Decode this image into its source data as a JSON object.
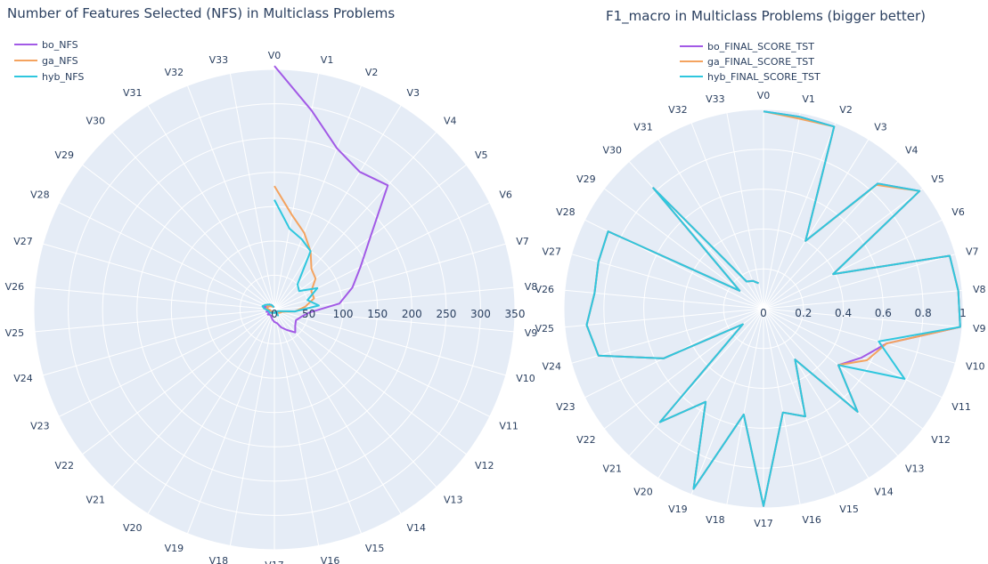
{
  "colors": {
    "background": "#e5ecf6",
    "grid": "#ffffff",
    "text": "#2a3f5f",
    "bo": "#a25ae6",
    "ga": "#f4a35f",
    "hyb": "#2fc7de"
  },
  "chart_data": [
    {
      "type": "radar",
      "title": "Number of Features Selected (NFS) in Multiclass Problems",
      "theta": [
        "V0",
        "V1",
        "V2",
        "V3",
        "V4",
        "V5",
        "V6",
        "V7",
        "V8",
        "V9",
        "V10",
        "V11",
        "V12",
        "V13",
        "V14",
        "V15",
        "V16",
        "V17",
        "V18",
        "V19",
        "V20",
        "V21",
        "V22",
        "V23",
        "V24",
        "V25",
        "V26",
        "V27",
        "V28",
        "V29",
        "V30",
        "V31",
        "V32",
        "V33"
      ],
      "radial_range": [
        0,
        350
      ],
      "radial_ticks": [
        0,
        50,
        100,
        150,
        200,
        250,
        300,
        350
      ],
      "legend_position": "top-left",
      "series": [
        {
          "name": "bo_NFS",
          "color_key": "bo",
          "values": [
            355,
            295,
            252,
            236,
            245,
            175,
            140,
            118,
            95,
            50,
            40,
            35,
            38,
            45,
            35,
            28,
            20,
            18,
            15,
            12,
            10,
            10,
            12,
            8,
            12,
            10,
            12,
            15,
            10,
            8,
            10,
            8,
            5,
            3
          ]
        },
        {
          "name": "ga_NFS",
          "color_key": "ga",
          "values": [
            180,
            140,
            120,
            100,
            80,
            75,
            60,
            60,
            45,
            30,
            12,
            10,
            8,
            5,
            4,
            3,
            3,
            5,
            5,
            4,
            4,
            4,
            5,
            5,
            6,
            6,
            12,
            10,
            12,
            8,
            6,
            5,
            5,
            3
          ]
        },
        {
          "name": "hyb_NFS",
          "color_key": "hyb",
          "values": [
            160,
            120,
            110,
            100,
            50,
            45,
            70,
            50,
            65,
            30,
            8,
            5,
            5,
            5,
            10,
            3,
            4,
            5,
            5,
            5,
            6,
            6,
            8,
            8,
            8,
            10,
            15,
            18,
            15,
            12,
            10,
            8,
            5,
            3
          ]
        }
      ]
    },
    {
      "type": "radar",
      "title": "F1_macro in Multiclass Problems (bigger better)",
      "theta": [
        "V0",
        "V1",
        "V2",
        "V3",
        "V4",
        "V5",
        "V6",
        "V7",
        "V8",
        "V9",
        "V10",
        "V11",
        "V12",
        "V13",
        "V14",
        "V15",
        "V16",
        "V17",
        "V18",
        "V19",
        "V20",
        "V21",
        "V22",
        "V23",
        "V24",
        "V25",
        "V26",
        "V27",
        "V28",
        "V29",
        "V30",
        "V31",
        "V32",
        "V33"
      ],
      "radial_range": [
        0,
        1
      ],
      "radial_ticks": [
        0,
        0.2,
        0.4,
        0.6,
        0.8,
        1
      ],
      "legend_position": "top-center",
      "series": [
        {
          "name": "bo_FINAL_SCORE_TST",
          "color_key": "bo",
          "values": [
            0.99,
            0.98,
            0.98,
            0.4,
            0.85,
            0.98,
            0.39,
            0.97,
            0.98,
            0.99,
            0.64,
            0.55,
            0.47,
            0.7,
            0.3,
            0.58,
            0.53,
            0.99,
            0.54,
            0.97,
            0.55,
            0.77,
            0.13,
            0.56,
            0.86,
            0.89,
            0.85,
            0.86,
            0.87,
            0.15,
            0.82,
            0.16,
            0.15,
            0.13
          ]
        },
        {
          "name": "ga_FINAL_SCORE_TST",
          "color_key": "ga",
          "values": [
            0.99,
            0.97,
            0.98,
            0.4,
            0.84,
            0.98,
            0.39,
            0.97,
            0.98,
            0.99,
            0.64,
            0.58,
            0.47,
            0.7,
            0.3,
            0.58,
            0.53,
            0.99,
            0.54,
            0.97,
            0.55,
            0.77,
            0.13,
            0.56,
            0.86,
            0.89,
            0.85,
            0.86,
            0.87,
            0.15,
            0.82,
            0.16,
            0.15,
            0.13
          ]
        },
        {
          "name": "hyb_FINAL_SCORE_TST",
          "color_key": "hyb",
          "values": [
            0.99,
            0.98,
            0.98,
            0.4,
            0.85,
            0.98,
            0.39,
            0.97,
            0.98,
            0.99,
            0.6,
            0.79,
            0.47,
            0.7,
            0.3,
            0.58,
            0.53,
            0.99,
            0.54,
            0.97,
            0.55,
            0.77,
            0.13,
            0.56,
            0.86,
            0.89,
            0.85,
            0.86,
            0.87,
            0.15,
            0.82,
            0.16,
            0.15,
            0.13
          ]
        }
      ]
    }
  ]
}
